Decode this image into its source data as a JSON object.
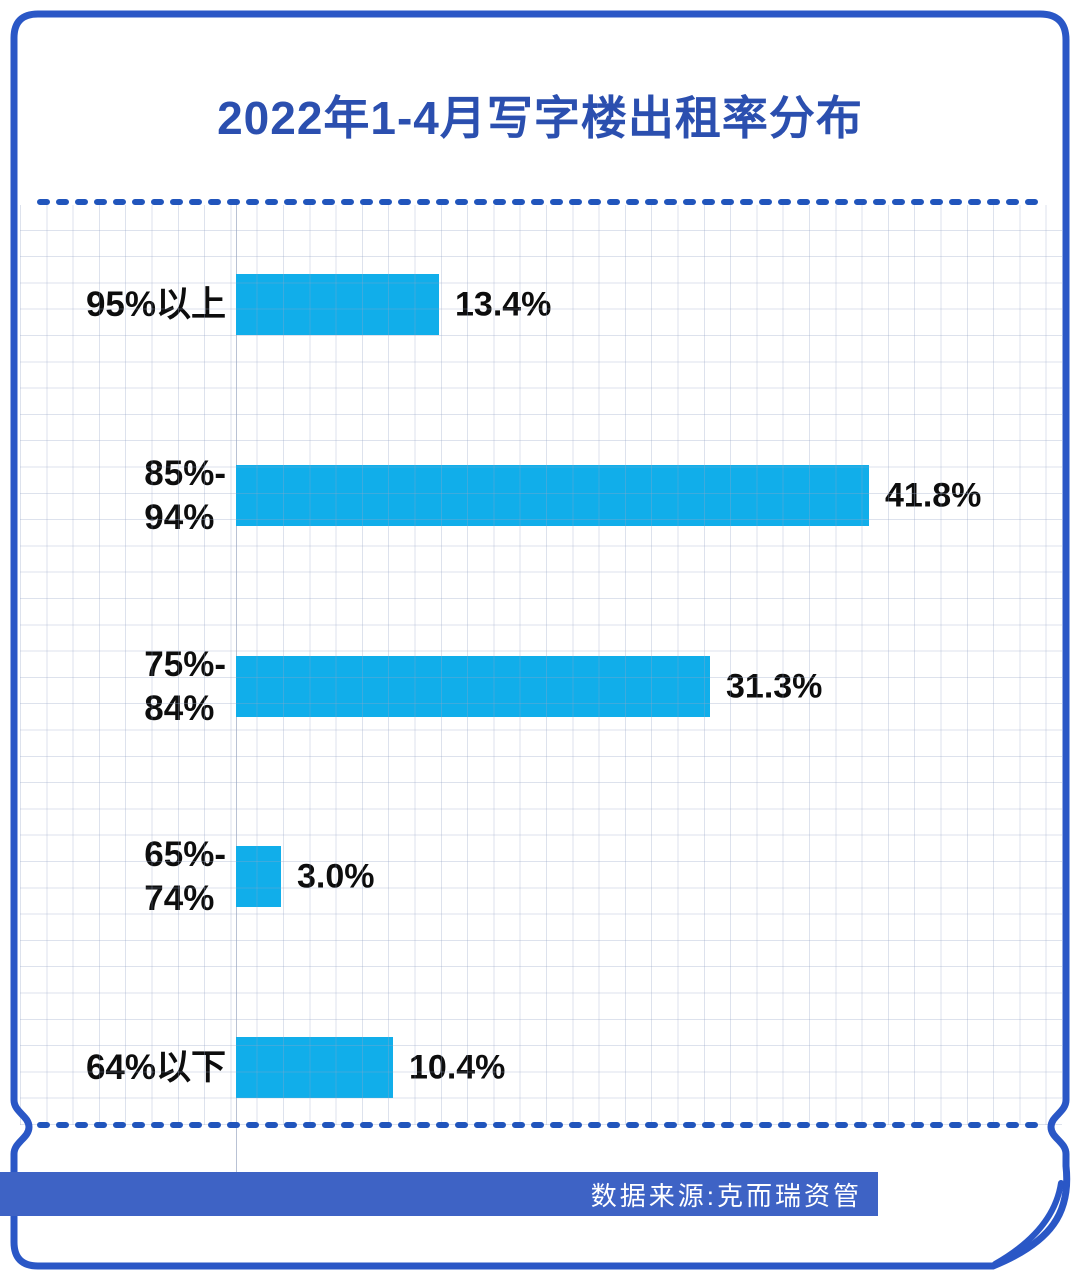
{
  "title": "2022年1-4月写字楼出租率分布",
  "source_bar": {
    "text": "数据来源:克而瑞资管"
  },
  "colors": {
    "frame": "#2a57c6",
    "dash": "#2155bc",
    "title": "#2b4faf",
    "bar": "#11aeea",
    "band": "#3e63c5",
    "band_text": "#ffffff",
    "label": "#0d0d0d"
  },
  "chart_data": {
    "type": "bar",
    "orientation": "horizontal",
    "title": "2022年1-4月写字楼出租率分布",
    "unit": "%",
    "categories": [
      "95%以上",
      "85%-94%",
      "75%-84%",
      "65%-74%",
      "64%以下"
    ],
    "label_lines": [
      [
        "95%以上"
      ],
      [
        "85%-",
        "94%"
      ],
      [
        "75%-",
        "84%"
      ],
      [
        "65%-",
        "74%"
      ],
      [
        "64%以下"
      ]
    ],
    "values": [
      13.4,
      41.8,
      31.3,
      3.0,
      10.4
    ],
    "value_labels": [
      "13.4%",
      "41.8%",
      "31.3%",
      "3.0%",
      "10.4%"
    ],
    "xlim": [
      0,
      50
    ],
    "grid": true,
    "legend": false,
    "source": "克而瑞资管"
  }
}
